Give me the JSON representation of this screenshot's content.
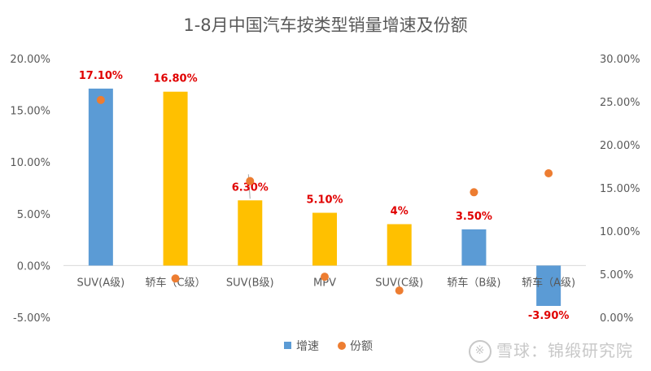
{
  "chart_data": {
    "type": "bar",
    "title": "1-8月中国汽车按类型销量增速及份额",
    "categories": [
      "SUV(A级)",
      "轿车（C级）",
      "SUV(B级)",
      "MPV",
      "SUV(C级)",
      "轿车（B级)",
      "轿车（A级)"
    ],
    "series": [
      {
        "name": "增速",
        "type": "bar",
        "axis": "left",
        "values": [
          17.1,
          16.8,
          6.3,
          5.1,
          4.0,
          3.5,
          -3.9
        ],
        "data_labels": [
          "17.10%",
          "16.80%",
          "6.30%",
          "5.10%",
          "4%",
          "3.50%",
          "-3.90%"
        ],
        "bar_colors": [
          "#5B9BD5",
          "#FFC000",
          "#FFC000",
          "#FFC000",
          "#FFC000",
          "#5B9BD5",
          "#5B9BD5"
        ]
      },
      {
        "name": "份额",
        "type": "scatter",
        "axis": "right",
        "values": [
          25.2,
          4.5,
          15.8,
          4.7,
          3.1,
          14.5,
          16.7
        ],
        "color": "#ED7D31"
      }
    ],
    "y_left": {
      "ylim": [
        -5,
        20
      ],
      "ticks": [
        20,
        15,
        10,
        5,
        0,
        -5
      ],
      "tick_labels": [
        "20.00%",
        "15.00%",
        "10.00%",
        "5.00%",
        "0.00%",
        "-5.00%"
      ]
    },
    "y_right": {
      "ylim": [
        0,
        30
      ],
      "ticks": [
        30,
        25,
        20,
        15,
        10,
        5,
        0
      ],
      "tick_labels": [
        "30.00%",
        "25.00%",
        "20.00%",
        "15.00%",
        "10.00%",
        "5.00%",
        "0.00%"
      ]
    },
    "legend_position": "bottom",
    "label_color": "#E00000",
    "grid": false
  },
  "watermark": {
    "logo": "※",
    "text": "雪球：锦缎研究院"
  }
}
